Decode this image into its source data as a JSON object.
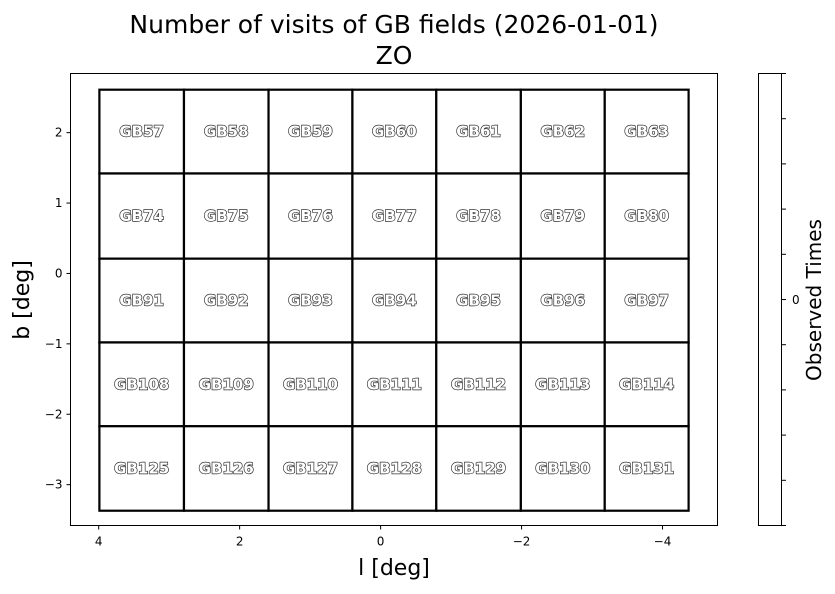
{
  "chart_data": {
    "type": "heatmap",
    "title": "Number of visits of GB fields (2026-01-01)",
    "subtitle": "ZO",
    "xlabel": "l [deg]",
    "ylabel": "b [deg]",
    "xlim": [
      4.4,
      -4.78
    ],
    "ylim": [
      -3.58,
      2.84
    ],
    "x_ticks": [
      4,
      2,
      0,
      -2,
      -4
    ],
    "x_tick_labels": [
      "4",
      "2",
      "0",
      "−2",
      "−4"
    ],
    "y_ticks": [
      2,
      1,
      0,
      -1,
      -2,
      -3
    ],
    "y_tick_labels": [
      "2",
      "1",
      "0",
      "−1",
      "−2",
      "−3"
    ],
    "grid": false,
    "field_l_edges": [
      3.99,
      2.79,
      1.59,
      0.4,
      -0.79,
      -1.99,
      -3.18,
      -4.37
    ],
    "field_b_edges": [
      2.61,
      1.42,
      0.21,
      -0.98,
      -2.17,
      -3.37
    ],
    "fields": [
      [
        "GB57",
        "GB58",
        "GB59",
        "GB60",
        "GB61",
        "GB62",
        "GB63"
      ],
      [
        "GB74",
        "GB75",
        "GB76",
        "GB77",
        "GB78",
        "GB79",
        "GB80"
      ],
      [
        "GB91",
        "GB92",
        "GB93",
        "GB94",
        "GB95",
        "GB96",
        "GB97"
      ],
      [
        "GB108",
        "GB109",
        "GB110",
        "GB111",
        "GB112",
        "GB113",
        "GB114"
      ],
      [
        "GB125",
        "GB126",
        "GB127",
        "GB128",
        "GB129",
        "GB130",
        "GB131"
      ]
    ],
    "visits": 0,
    "colorbar": {
      "label": "Observed Times",
      "tick_labels": [
        "0"
      ],
      "minor_tick_count": 11,
      "color": "#ffffff"
    }
  }
}
